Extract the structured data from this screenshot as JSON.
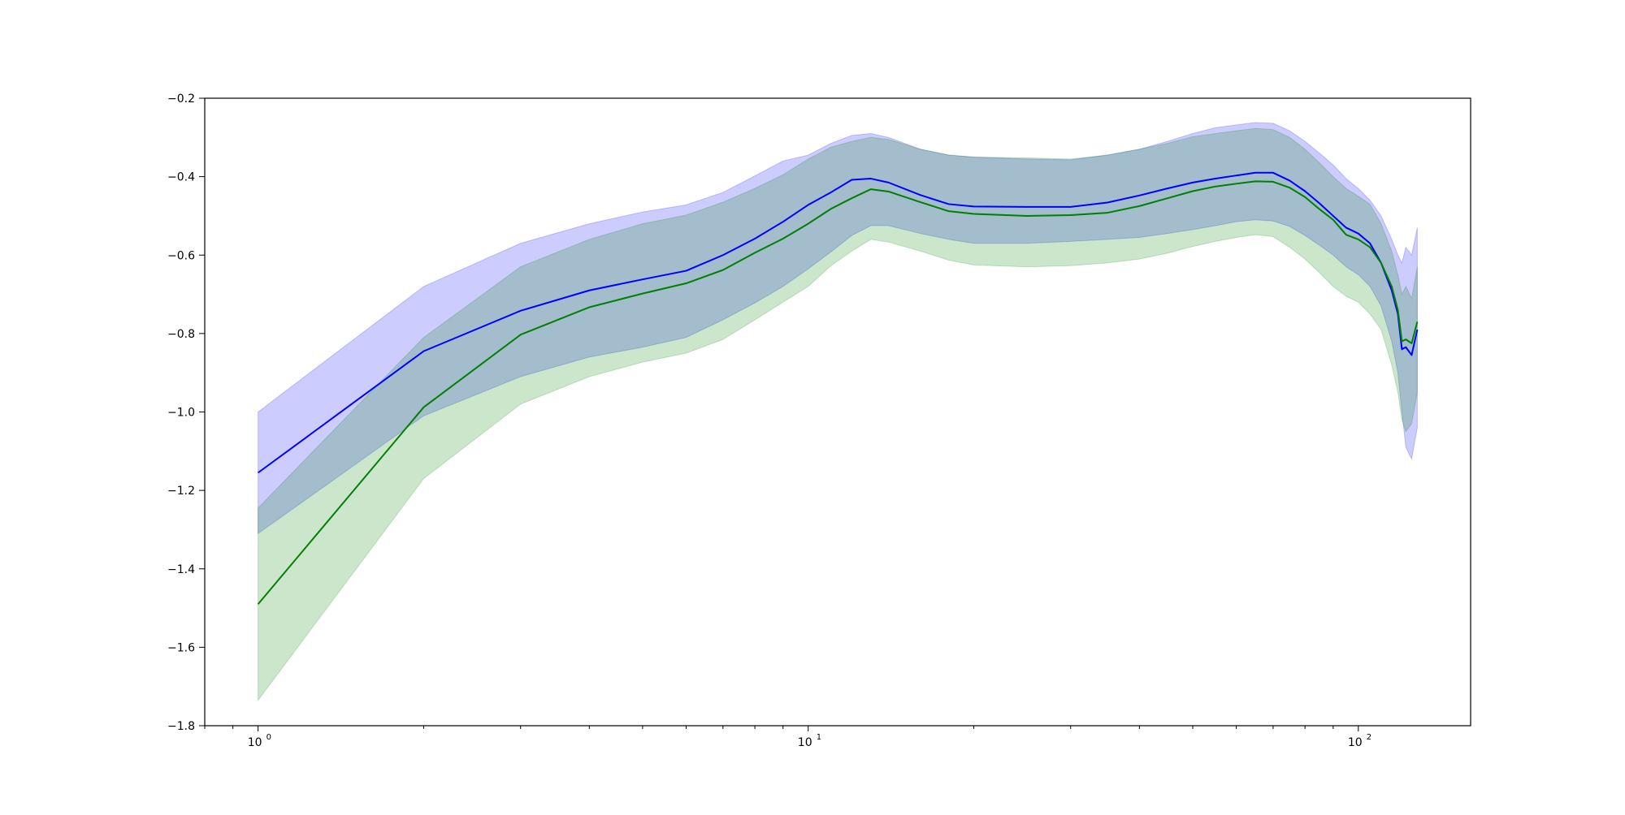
{
  "chart_data": {
    "type": "line",
    "title": "",
    "xlabel": "",
    "ylabel": "",
    "xscale": "log",
    "xlim": [
      0.8,
      160
    ],
    "ylim": [
      -1.8,
      -0.2
    ],
    "grid": false,
    "legend": "none",
    "x_ticks": [
      {
        "value": 1,
        "base": "10",
        "exp": "0"
      },
      {
        "value": 10,
        "base": "10",
        "exp": "1"
      },
      {
        "value": 100,
        "base": "10",
        "exp": "2"
      }
    ],
    "y_ticks": [
      {
        "value": -1.8,
        "label": "−1.8"
      },
      {
        "value": -1.6,
        "label": "−1.6"
      },
      {
        "value": -1.4,
        "label": "−1.4"
      },
      {
        "value": -1.2,
        "label": "−1.2"
      },
      {
        "value": -1.0,
        "label": "−1.0"
      },
      {
        "value": -0.8,
        "label": "−0.8"
      },
      {
        "value": -0.6,
        "label": "−0.6"
      },
      {
        "value": -0.4,
        "label": "−0.4"
      },
      {
        "value": -0.2,
        "label": "−0.2"
      }
    ],
    "series": [
      {
        "color": "#0000ff",
        "band_color": "#0000ff",
        "band_opacity": 0.2,
        "x": [
          1,
          2,
          3,
          4,
          5,
          6,
          7,
          8,
          9,
          10,
          11,
          12,
          13,
          14,
          16,
          18,
          20,
          25,
          30,
          35,
          40,
          45,
          50,
          55,
          60,
          65,
          70,
          75,
          80,
          85,
          90,
          95,
          100,
          105,
          110,
          115,
          118,
          120,
          122,
          125,
          128
        ],
        "y": [
          -1.155,
          -0.845,
          -0.742,
          -0.69,
          -0.662,
          -0.64,
          -0.6,
          -0.558,
          -0.515,
          -0.472,
          -0.44,
          -0.408,
          -0.405,
          -0.415,
          -0.447,
          -0.47,
          -0.476,
          -0.477,
          -0.477,
          -0.466,
          -0.448,
          -0.43,
          -0.415,
          -0.405,
          -0.397,
          -0.39,
          -0.39,
          -0.41,
          -0.437,
          -0.468,
          -0.5,
          -0.53,
          -0.545,
          -0.57,
          -0.62,
          -0.69,
          -0.75,
          -0.84,
          -0.835,
          -0.855,
          -0.79
        ],
        "lower": [
          -1.31,
          -1.01,
          -0.91,
          -0.86,
          -0.835,
          -0.81,
          -0.765,
          -0.722,
          -0.68,
          -0.635,
          -0.592,
          -0.55,
          -0.525,
          -0.525,
          -0.545,
          -0.56,
          -0.57,
          -0.57,
          -0.565,
          -0.56,
          -0.555,
          -0.545,
          -0.535,
          -0.525,
          -0.515,
          -0.51,
          -0.513,
          -0.527,
          -0.55,
          -0.575,
          -0.6,
          -0.63,
          -0.65,
          -0.68,
          -0.73,
          -0.82,
          -0.9,
          -1.0,
          -1.09,
          -1.12,
          -1.04
        ],
        "upper": [
          -1.0,
          -0.68,
          -0.57,
          -0.52,
          -0.49,
          -0.472,
          -0.44,
          -0.398,
          -0.36,
          -0.345,
          -0.315,
          -0.295,
          -0.29,
          -0.3,
          -0.33,
          -0.345,
          -0.35,
          -0.355,
          -0.357,
          -0.345,
          -0.33,
          -0.31,
          -0.29,
          -0.275,
          -0.268,
          -0.262,
          -0.264,
          -0.283,
          -0.31,
          -0.34,
          -0.37,
          -0.405,
          -0.43,
          -0.46,
          -0.5,
          -0.56,
          -0.6,
          -0.62,
          -0.58,
          -0.6,
          -0.53
        ]
      },
      {
        "color": "#008000",
        "band_color": "#008000",
        "band_opacity": 0.2,
        "x": [
          1,
          2,
          3,
          4,
          5,
          6,
          7,
          8,
          9,
          10,
          11,
          12,
          13,
          14,
          16,
          18,
          20,
          25,
          30,
          35,
          40,
          45,
          50,
          55,
          60,
          65,
          70,
          75,
          80,
          85,
          90,
          95,
          100,
          105,
          110,
          115,
          118,
          120,
          122,
          125,
          128
        ],
        "y": [
          -1.49,
          -0.988,
          -0.803,
          -0.733,
          -0.698,
          -0.672,
          -0.638,
          -0.594,
          -0.558,
          -0.52,
          -0.482,
          -0.455,
          -0.432,
          -0.438,
          -0.465,
          -0.488,
          -0.495,
          -0.5,
          -0.498,
          -0.492,
          -0.475,
          -0.455,
          -0.437,
          -0.425,
          -0.418,
          -0.412,
          -0.413,
          -0.428,
          -0.452,
          -0.483,
          -0.51,
          -0.548,
          -0.56,
          -0.58,
          -0.62,
          -0.68,
          -0.74,
          -0.82,
          -0.815,
          -0.825,
          -0.77
        ],
        "lower": [
          -1.735,
          -1.17,
          -0.98,
          -0.91,
          -0.873,
          -0.85,
          -0.815,
          -0.765,
          -0.72,
          -0.68,
          -0.627,
          -0.59,
          -0.56,
          -0.567,
          -0.59,
          -0.613,
          -0.625,
          -0.63,
          -0.627,
          -0.62,
          -0.61,
          -0.595,
          -0.578,
          -0.565,
          -0.555,
          -0.548,
          -0.553,
          -0.58,
          -0.61,
          -0.645,
          -0.68,
          -0.705,
          -0.72,
          -0.75,
          -0.79,
          -0.88,
          -0.95,
          -1.02,
          -1.05,
          -1.03,
          -0.95
        ],
        "upper": [
          -1.245,
          -0.81,
          -0.63,
          -0.56,
          -0.52,
          -0.498,
          -0.465,
          -0.43,
          -0.395,
          -0.355,
          -0.325,
          -0.31,
          -0.3,
          -0.305,
          -0.33,
          -0.345,
          -0.35,
          -0.352,
          -0.355,
          -0.345,
          -0.33,
          -0.315,
          -0.298,
          -0.29,
          -0.283,
          -0.277,
          -0.28,
          -0.3,
          -0.33,
          -0.365,
          -0.4,
          -0.43,
          -0.45,
          -0.47,
          -0.52,
          -0.59,
          -0.65,
          -0.7,
          -0.68,
          -0.71,
          -0.63
        ]
      }
    ]
  }
}
